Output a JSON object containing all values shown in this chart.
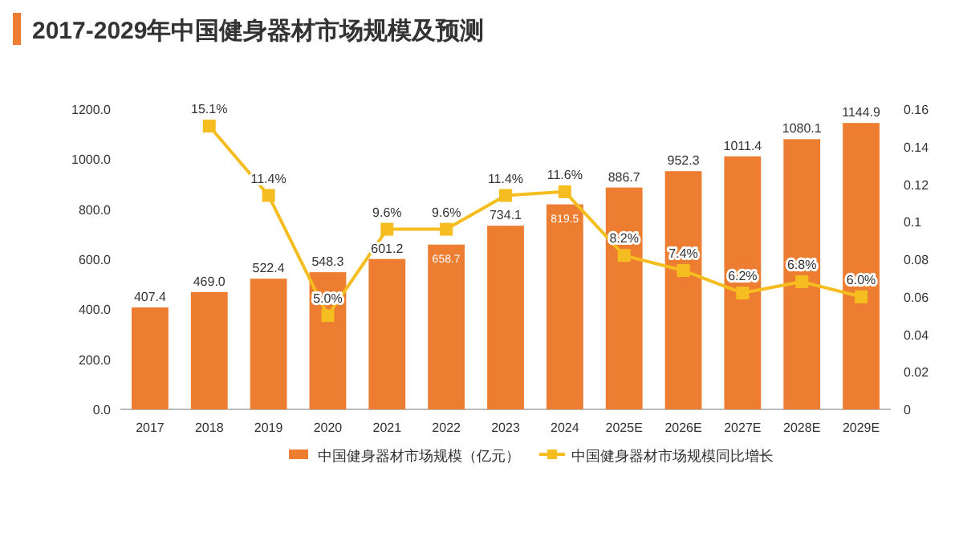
{
  "chart_data": {
    "type": "bar",
    "title": "2017-2029年中国健身器材市场规模及预测",
    "categories": [
      "2017",
      "2018",
      "2019",
      "2020",
      "2021",
      "2022",
      "2023",
      "2024",
      "2025E",
      "2026E",
      "2027E",
      "2028E",
      "2029E"
    ],
    "series": [
      {
        "name": "中国健身器材市场规模（亿元）",
        "type": "bar",
        "color": "#ed7d31",
        "values": [
          407.4,
          469.0,
          522.4,
          548.3,
          601.2,
          658.7,
          734.1,
          819.5,
          886.7,
          952.3,
          1011.4,
          1080.1,
          1144.9
        ],
        "value_labels": [
          "407.4",
          "469.0",
          "522.4",
          "548.3",
          "601.2",
          "658.7",
          "734.1",
          "819.5",
          "886.7",
          "952.3",
          "1011.4",
          "1080.1",
          "1144.9"
        ]
      },
      {
        "name": "中国健身器材市场规模同比增长",
        "type": "line",
        "axis": "y2",
        "color": "#f5bd1f",
        "marker": "square",
        "values": [
          null,
          0.151,
          0.114,
          0.05,
          0.096,
          0.096,
          0.114,
          0.116,
          0.082,
          0.074,
          0.062,
          0.068,
          0.06
        ],
        "value_labels": [
          null,
          "15.1%",
          "11.4%",
          "5.0%",
          "9.6%",
          "9.6%",
          "11.4%",
          "11.6%",
          "8.2%",
          "7.4%",
          "6.2%",
          "6.8%",
          "6.0%"
        ]
      }
    ],
    "ylim": [
      0,
      1200
    ],
    "yticks": [
      {
        "value": 0,
        "label": "0.0"
      },
      {
        "value": 200,
        "label": "200.0"
      },
      {
        "value": 400,
        "label": "400.0"
      },
      {
        "value": 600,
        "label": "600.0"
      },
      {
        "value": 800,
        "label": "800.0"
      },
      {
        "value": 1000,
        "label": "1000.0"
      },
      {
        "value": 1200,
        "label": "1200.0"
      }
    ],
    "y2lim": [
      0,
      0.16
    ],
    "y2ticks": [
      0,
      0.02,
      0.04,
      0.06,
      0.08,
      0.1,
      0.12,
      0.14,
      0.16
    ],
    "grid": false,
    "legend": "bottom"
  }
}
